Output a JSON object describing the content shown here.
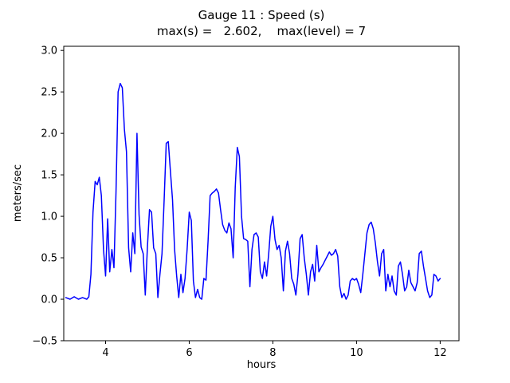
{
  "chart_data": {
    "type": "line",
    "title": "Gauge 11 : Speed (s)",
    "subtitle": "max(s) =   2.602,    max(level) = 7",
    "xlabel": "hours",
    "ylabel": "meters/sec",
    "xlim": [
      3.0,
      12.45
    ],
    "ylim": [
      -0.5,
      3.05
    ],
    "xticks": [
      4,
      6,
      8,
      10,
      12
    ],
    "yticks": [
      -0.5,
      0.0,
      0.5,
      1.0,
      1.5,
      2.0,
      2.5,
      3.0
    ],
    "grid": false,
    "legend": "none",
    "line_color": "#0000ff",
    "max_s": 2.602,
    "max_level": 7,
    "series": [
      {
        "name": "speed",
        "points": [
          [
            3.05,
            0.02
          ],
          [
            3.15,
            0.0
          ],
          [
            3.25,
            0.03
          ],
          [
            3.35,
            0.0
          ],
          [
            3.45,
            0.02
          ],
          [
            3.55,
            0.0
          ],
          [
            3.6,
            0.03
          ],
          [
            3.65,
            0.3
          ],
          [
            3.7,
            1.05
          ],
          [
            3.75,
            1.42
          ],
          [
            3.8,
            1.38
          ],
          [
            3.85,
            1.47
          ],
          [
            3.9,
            1.25
          ],
          [
            3.95,
            0.6
          ],
          [
            4.0,
            0.28
          ],
          [
            4.05,
            0.97
          ],
          [
            4.1,
            0.33
          ],
          [
            4.15,
            0.6
          ],
          [
            4.2,
            0.38
          ],
          [
            4.25,
            1.3
          ],
          [
            4.3,
            2.5
          ],
          [
            4.35,
            2.602
          ],
          [
            4.4,
            2.55
          ],
          [
            4.45,
            2.05
          ],
          [
            4.5,
            1.78
          ],
          [
            4.55,
            0.62
          ],
          [
            4.6,
            0.33
          ],
          [
            4.65,
            0.8
          ],
          [
            4.7,
            0.55
          ],
          [
            4.75,
            2.0
          ],
          [
            4.8,
            1.02
          ],
          [
            4.85,
            0.63
          ],
          [
            4.9,
            0.55
          ],
          [
            4.95,
            0.05
          ],
          [
            5.0,
            0.63
          ],
          [
            5.05,
            1.08
          ],
          [
            5.1,
            1.05
          ],
          [
            5.15,
            0.62
          ],
          [
            5.2,
            0.55
          ],
          [
            5.25,
            0.02
          ],
          [
            5.3,
            0.3
          ],
          [
            5.35,
            0.55
          ],
          [
            5.4,
            1.2
          ],
          [
            5.45,
            1.88
          ],
          [
            5.5,
            1.9
          ],
          [
            5.55,
            1.55
          ],
          [
            5.6,
            1.2
          ],
          [
            5.65,
            0.6
          ],
          [
            5.7,
            0.28
          ],
          [
            5.75,
            0.02
          ],
          [
            5.8,
            0.3
          ],
          [
            5.85,
            0.08
          ],
          [
            5.9,
            0.25
          ],
          [
            5.95,
            0.6
          ],
          [
            6.0,
            1.05
          ],
          [
            6.05,
            0.95
          ],
          [
            6.1,
            0.22
          ],
          [
            6.15,
            0.02
          ],
          [
            6.2,
            0.12
          ],
          [
            6.25,
            0.02
          ],
          [
            6.3,
            0.0
          ],
          [
            6.35,
            0.25
          ],
          [
            6.4,
            0.23
          ],
          [
            6.45,
            0.7
          ],
          [
            6.5,
            1.25
          ],
          [
            6.55,
            1.28
          ],
          [
            6.6,
            1.3
          ],
          [
            6.65,
            1.33
          ],
          [
            6.7,
            1.28
          ],
          [
            6.75,
            1.08
          ],
          [
            6.8,
            0.9
          ],
          [
            6.85,
            0.83
          ],
          [
            6.9,
            0.8
          ],
          [
            6.95,
            0.92
          ],
          [
            7.0,
            0.85
          ],
          [
            7.05,
            0.5
          ],
          [
            7.1,
            1.35
          ],
          [
            7.15,
            1.83
          ],
          [
            7.2,
            1.72
          ],
          [
            7.25,
            1.0
          ],
          [
            7.3,
            0.73
          ],
          [
            7.35,
            0.72
          ],
          [
            7.4,
            0.7
          ],
          [
            7.45,
            0.15
          ],
          [
            7.5,
            0.6
          ],
          [
            7.55,
            0.78
          ],
          [
            7.6,
            0.8
          ],
          [
            7.65,
            0.75
          ],
          [
            7.7,
            0.33
          ],
          [
            7.75,
            0.25
          ],
          [
            7.8,
            0.45
          ],
          [
            7.85,
            0.28
          ],
          [
            7.9,
            0.55
          ],
          [
            7.95,
            0.88
          ],
          [
            8.0,
            1.0
          ],
          [
            8.05,
            0.72
          ],
          [
            8.1,
            0.6
          ],
          [
            8.15,
            0.65
          ],
          [
            8.2,
            0.5
          ],
          [
            8.25,
            0.1
          ],
          [
            8.3,
            0.58
          ],
          [
            8.35,
            0.7
          ],
          [
            8.4,
            0.55
          ],
          [
            8.45,
            0.25
          ],
          [
            8.5,
            0.18
          ],
          [
            8.55,
            0.05
          ],
          [
            8.6,
            0.3
          ],
          [
            8.65,
            0.73
          ],
          [
            8.7,
            0.78
          ],
          [
            8.75,
            0.5
          ],
          [
            8.8,
            0.3
          ],
          [
            8.85,
            0.05
          ],
          [
            8.9,
            0.33
          ],
          [
            8.95,
            0.42
          ],
          [
            9.0,
            0.22
          ],
          [
            9.05,
            0.65
          ],
          [
            9.1,
            0.33
          ],
          [
            9.15,
            0.38
          ],
          [
            9.2,
            0.42
          ],
          [
            9.25,
            0.47
          ],
          [
            9.3,
            0.52
          ],
          [
            9.35,
            0.57
          ],
          [
            9.4,
            0.53
          ],
          [
            9.45,
            0.55
          ],
          [
            9.5,
            0.6
          ],
          [
            9.55,
            0.52
          ],
          [
            9.6,
            0.15
          ],
          [
            9.65,
            0.02
          ],
          [
            9.7,
            0.07
          ],
          [
            9.75,
            0.0
          ],
          [
            9.8,
            0.05
          ],
          [
            9.85,
            0.22
          ],
          [
            9.9,
            0.25
          ],
          [
            9.95,
            0.23
          ],
          [
            10.0,
            0.25
          ],
          [
            10.05,
            0.18
          ],
          [
            10.1,
            0.08
          ],
          [
            10.15,
            0.3
          ],
          [
            10.2,
            0.55
          ],
          [
            10.25,
            0.8
          ],
          [
            10.3,
            0.9
          ],
          [
            10.35,
            0.93
          ],
          [
            10.4,
            0.85
          ],
          [
            10.45,
            0.68
          ],
          [
            10.5,
            0.45
          ],
          [
            10.55,
            0.28
          ],
          [
            10.6,
            0.55
          ],
          [
            10.65,
            0.6
          ],
          [
            10.7,
            0.1
          ],
          [
            10.75,
            0.3
          ],
          [
            10.8,
            0.15
          ],
          [
            10.85,
            0.28
          ],
          [
            10.9,
            0.1
          ],
          [
            10.95,
            0.05
          ],
          [
            11.0,
            0.4
          ],
          [
            11.05,
            0.45
          ],
          [
            11.1,
            0.3
          ],
          [
            11.15,
            0.1
          ],
          [
            11.2,
            0.15
          ],
          [
            11.25,
            0.35
          ],
          [
            11.3,
            0.2
          ],
          [
            11.35,
            0.15
          ],
          [
            11.4,
            0.1
          ],
          [
            11.45,
            0.2
          ],
          [
            11.5,
            0.55
          ],
          [
            11.55,
            0.58
          ],
          [
            11.6,
            0.4
          ],
          [
            11.65,
            0.25
          ],
          [
            11.7,
            0.1
          ],
          [
            11.75,
            0.02
          ],
          [
            11.8,
            0.05
          ],
          [
            11.85,
            0.3
          ],
          [
            11.9,
            0.28
          ],
          [
            11.95,
            0.22
          ],
          [
            12.0,
            0.25
          ]
        ]
      }
    ]
  }
}
